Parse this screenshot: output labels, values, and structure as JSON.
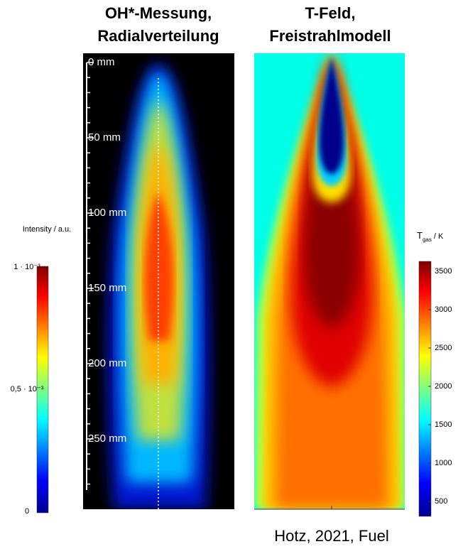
{
  "left_panel": {
    "title": [
      "OH*-Messung,",
      "Radialverteilung"
    ],
    "scale_labels": [
      "0 mm",
      "50 mm",
      "100 mm",
      "150 mm",
      "200 mm",
      "250 mm"
    ]
  },
  "left_colorbar": {
    "label": "Intensity / a.u.",
    "tick_labels": [
      "1 · 10⁻³",
      "0,5 · 10⁻³",
      "0"
    ]
  },
  "right_panel": {
    "title": [
      "T-Feld,",
      "Freistrahlmodell"
    ]
  },
  "right_colorbar": {
    "label": {
      "symbol": "T",
      "subscript": "gas",
      "unit": "/ K"
    },
    "tick_labels": [
      "3500",
      "3000",
      "2500",
      "2000",
      "1500",
      "1000",
      "500"
    ]
  },
  "citation": "Hotz, 2021, Fuel"
}
